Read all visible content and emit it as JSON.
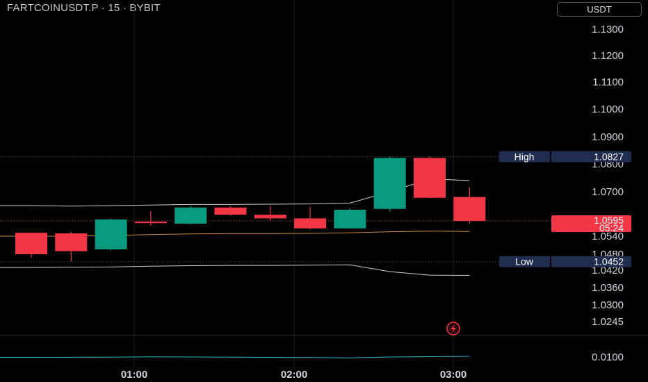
{
  "header": {
    "title": "FARTCOINUSDT.P · 15 · BYBIT",
    "currency_label": "USDT"
  },
  "colors": {
    "up": "#089981",
    "down": "#f23645",
    "bollinger": "#cfcfcf",
    "basis": "#c98a3b",
    "indicator": "#2bb3c4",
    "grid": "#1e1e1e",
    "tag_bg": "#1e2c4d",
    "icon": "#f23645"
  },
  "price_tags": {
    "high_label": "High",
    "high_value": "1.0827",
    "low_label": "Low",
    "low_value": "1.0452",
    "current_value": "1.0595",
    "countdown": "05:24"
  },
  "lightning_icon": "lightning-icon",
  "chart_data": {
    "type": "candlestick",
    "y_ticks": [
      "1.1300",
      "1.1200",
      "1.1100",
      "1.1000",
      "1.0900",
      "1.0800",
      "1.0700",
      "1.0540",
      "1.0480",
      "1.0420",
      "1.0360",
      "1.0300",
      "1.0245"
    ],
    "x_ticks": [
      "01:00",
      "02:00",
      "03:00"
    ],
    "candles": [
      {
        "o": 1.0552,
        "h": 1.0552,
        "l": 1.0468,
        "c": 1.048
      },
      {
        "o": 1.055,
        "h": 1.0555,
        "l": 1.0452,
        "c": 1.049
      },
      {
        "o": 1.0496,
        "h": 1.0604,
        "l": 1.0492,
        "c": 1.06
      },
      {
        "o": 1.0592,
        "h": 1.063,
        "l": 1.0578,
        "c": 1.0588
      },
      {
        "o": 1.0585,
        "h": 1.065,
        "l": 1.0582,
        "c": 1.0643
      },
      {
        "o": 1.0643,
        "h": 1.0648,
        "l": 1.0614,
        "c": 1.0617
      },
      {
        "o": 1.0617,
        "h": 1.0648,
        "l": 1.0595,
        "c": 1.0604
      },
      {
        "o": 1.0604,
        "h": 1.0645,
        "l": 1.0564,
        "c": 1.0568
      },
      {
        "o": 1.0568,
        "h": 1.064,
        "l": 1.0568,
        "c": 1.0635
      },
      {
        "o": 1.0638,
        "h": 1.0827,
        "l": 1.0628,
        "c": 1.0822
      },
      {
        "o": 1.0822,
        "h": 1.0827,
        "l": 1.0678,
        "c": 1.0678
      },
      {
        "o": 1.0681,
        "h": 1.0716,
        "l": 1.0585,
        "c": 1.0595
      }
    ],
    "bollinger_upper": [
      1.065,
      1.0648,
      1.065,
      1.0652,
      1.0654,
      1.0654,
      1.0655,
      1.0656,
      1.0659,
      1.07,
      1.0746,
      1.074
    ],
    "bollinger_basis": [
      1.054,
      1.054,
      1.0542,
      1.0546,
      1.0548,
      1.0549,
      1.0549,
      1.055,
      1.0552,
      1.0556,
      1.0558,
      1.0557
    ],
    "bollinger_lower": [
      1.043,
      1.0431,
      1.0432,
      1.0435,
      1.0437,
      1.0438,
      1.0438,
      1.0439,
      1.044,
      1.0415,
      1.0403,
      1.0402
    ],
    "indicator": {
      "axis_label": "0.0100",
      "values": [
        0.0085,
        0.0086,
        0.0088,
        0.0093,
        0.009,
        0.0087,
        0.0085,
        0.0082,
        0.0078,
        0.009,
        0.0095,
        0.01
      ]
    }
  }
}
